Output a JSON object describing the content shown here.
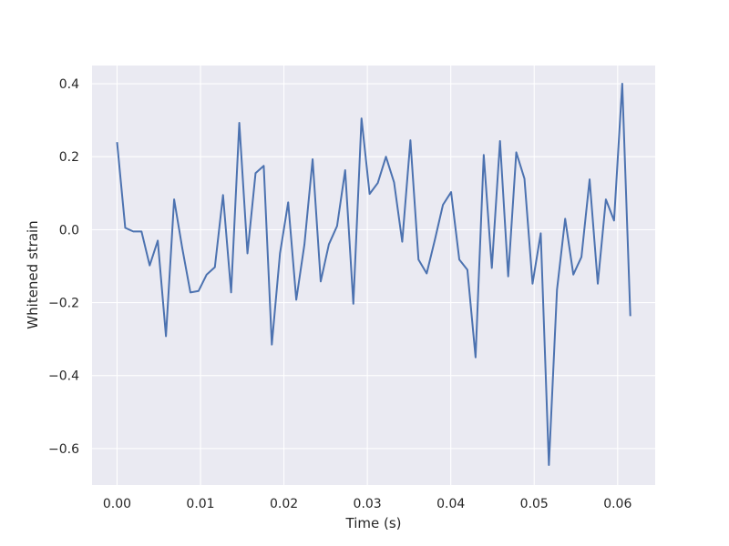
{
  "chart_data": {
    "type": "line",
    "title": "",
    "xlabel": "Time (s)",
    "ylabel": "Whitened strain",
    "xlim": [
      -0.003,
      0.0645
    ],
    "ylim": [
      -0.7,
      0.45
    ],
    "xticks": [
      0.0,
      0.01,
      0.02,
      0.03,
      0.04,
      0.05,
      0.06
    ],
    "xtick_labels": [
      "0.00",
      "0.01",
      "0.02",
      "0.03",
      "0.04",
      "0.05",
      "0.06"
    ],
    "yticks": [
      0.4,
      0.2,
      0.0,
      -0.2,
      -0.4,
      -0.6
    ],
    "ytick_labels": [
      "0.4",
      "0.2",
      "0.0",
      "−0.2",
      "−0.4",
      "−0.6"
    ],
    "grid": true,
    "background_color": "#eaeaf2",
    "line_color": "#4c72b0",
    "series": [
      {
        "x": [
          0.0,
          0.00098,
          0.00195,
          0.00293,
          0.00391,
          0.00488,
          0.00586,
          0.00684,
          0.00781,
          0.00879,
          0.00977,
          0.01074,
          0.01172,
          0.0127,
          0.01367,
          0.01465,
          0.01563,
          0.0166,
          0.01758,
          0.01855,
          0.01953,
          0.02051,
          0.02148,
          0.02246,
          0.02344,
          0.02441,
          0.02539,
          0.02637,
          0.02734,
          0.02832,
          0.0293,
          0.03027,
          0.03125,
          0.03223,
          0.0332,
          0.03418,
          0.03516,
          0.03613,
          0.03711,
          0.03809,
          0.03906,
          0.04004,
          0.04102,
          0.04199,
          0.04297,
          0.04395,
          0.04492,
          0.0459,
          0.04688,
          0.04785,
          0.04883,
          0.0498,
          0.05078,
          0.05176,
          0.05273,
          0.05371,
          0.05469,
          0.05566,
          0.05664,
          0.05762,
          0.05859,
          0.05957,
          0.06055,
          0.06152
        ],
        "y": [
          0.24,
          0.005,
          -0.005,
          -0.005,
          -0.098,
          -0.03,
          -0.292,
          0.083,
          -0.05,
          -0.172,
          -0.168,
          -0.123,
          -0.103,
          0.095,
          -0.172,
          0.293,
          -0.065,
          0.155,
          0.175,
          -0.315,
          -0.065,
          0.075,
          -0.192,
          -0.04,
          0.193,
          -0.142,
          -0.04,
          0.01,
          0.163,
          -0.203,
          0.305,
          0.098,
          0.128,
          0.2,
          0.13,
          -0.033,
          0.245,
          -0.082,
          -0.12,
          -0.028,
          0.068,
          0.103,
          -0.082,
          -0.11,
          -0.35,
          0.205,
          -0.105,
          0.243,
          -0.128,
          0.212,
          0.14,
          -0.148,
          -0.01,
          -0.645,
          -0.165,
          0.03,
          -0.123,
          -0.075,
          0.138,
          -0.148,
          0.083,
          0.025,
          0.4,
          -0.237
        ]
      }
    ]
  }
}
